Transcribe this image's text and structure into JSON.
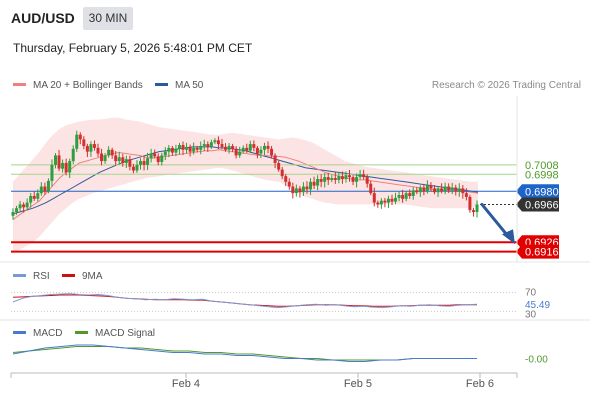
{
  "header": {
    "symbol": "AUD/USD",
    "timeframe": "30 MIN",
    "datetime": "Thursday, February 5, 2026 5:48:01 PM CET"
  },
  "legends": {
    "ma20_bb": "MA 20 + Bollinger Bands",
    "ma50": "MA 50",
    "rsi": "RSI",
    "rsi_ma": "9MA",
    "macd": "MACD",
    "macd_signal": "MACD Signal"
  },
  "credit": "Research © 2026 Trading Central",
  "colors": {
    "ma20": "#f08080",
    "bollinger_fill": "#fde4e4",
    "ma50": "#2c5a9c",
    "up_candle": "#2e9e3e",
    "down_candle": "#d32f2f",
    "resistance": "#a5d48a",
    "support": "#e00000",
    "current": "#1e64c8",
    "arrow": "#2c5a9c",
    "rsi": "#7a9ad6",
    "rsi_ma": "#d01010",
    "macd": "#4a7ad0",
    "macd_signal": "#4f9a2a"
  },
  "chart_data": [
    {
      "type": "candlestick",
      "x_labels": [
        "Feb 4",
        "Feb 5",
        "Feb 6"
      ],
      "ylim": [
        0.6905,
        0.7081
      ],
      "price_levels": [
        {
          "value": "0.7008",
          "role": "resistance"
        },
        {
          "value": "0.6998",
          "role": "resistance"
        },
        {
          "value": "0.6980",
          "role": "current"
        },
        {
          "value": "0.6966",
          "role": "last"
        },
        {
          "value": "0.6926",
          "role": "support"
        },
        {
          "value": "0.6916",
          "role": "support"
        }
      ],
      "projection": {
        "from": 0.6966,
        "to": 0.6926
      },
      "close": [
        0.6958,
        0.6962,
        0.6966,
        0.6963,
        0.6968,
        0.6975,
        0.6972,
        0.6978,
        0.6985,
        0.698,
        0.6991,
        0.7008,
        0.7018,
        0.7004,
        0.701,
        0.7,
        0.7012,
        0.7025,
        0.704,
        0.7035,
        0.7028,
        0.7022,
        0.703,
        0.7026,
        0.702,
        0.7012,
        0.7018,
        0.7024,
        0.7018,
        0.7012,
        0.7016,
        0.701,
        0.7014,
        0.7006,
        0.7002,
        0.7008,
        0.7012,
        0.7008,
        0.7015,
        0.702,
        0.7017,
        0.7011,
        0.7018,
        0.7022,
        0.7026,
        0.7021,
        0.7025,
        0.7029,
        0.7024,
        0.7027,
        0.7022,
        0.7026,
        0.7024,
        0.7028,
        0.703,
        0.7027,
        0.7032,
        0.7034,
        0.703,
        0.7027,
        0.7024,
        0.7028,
        0.7025,
        0.7018,
        0.7022,
        0.7026,
        0.7023,
        0.703,
        0.7026,
        0.702,
        0.7024,
        0.7028,
        0.7025,
        0.7018,
        0.701,
        0.7003,
        0.6996,
        0.699,
        0.6985,
        0.6978,
        0.6983,
        0.6979,
        0.6985,
        0.6982,
        0.699,
        0.6986,
        0.6993,
        0.699,
        0.6995,
        0.6992,
        0.6994,
        0.6992,
        0.6996,
        0.6993,
        0.6997,
        0.6995,
        0.699,
        0.6995,
        0.6998,
        0.6995,
        0.6988,
        0.6978,
        0.6968,
        0.6966,
        0.697,
        0.6968,
        0.6972,
        0.6969,
        0.6973,
        0.6976,
        0.6972,
        0.6978,
        0.6975,
        0.6981,
        0.6979,
        0.6984,
        0.698,
        0.6986,
        0.6983,
        0.6979,
        0.6983,
        0.698,
        0.6985,
        0.6981,
        0.6984,
        0.698,
        0.6983,
        0.6978,
        0.6974,
        0.696,
        0.6958,
        0.6966
      ],
      "ma20": [
        0.695,
        0.6955,
        0.696,
        0.6965,
        0.697,
        0.6978,
        0.6986,
        0.6994,
        0.7,
        0.7005,
        0.701,
        0.7012,
        0.7014,
        0.7016,
        0.7018,
        0.702,
        0.7021,
        0.702,
        0.7019,
        0.7018,
        0.7016,
        0.7015,
        0.7016,
        0.7017,
        0.7018,
        0.7019,
        0.702,
        0.7021,
        0.7022,
        0.7023,
        0.7023,
        0.7024,
        0.7023,
        0.7022,
        0.7021,
        0.702,
        0.7019,
        0.7018,
        0.7018,
        0.7017,
        0.7017,
        0.7016,
        0.7014,
        0.7012,
        0.7009,
        0.7006,
        0.7003,
        0.7,
        0.6998,
        0.6996,
        0.6994,
        0.6993,
        0.6992,
        0.6992,
        0.6991,
        0.699,
        0.6989,
        0.6988,
        0.6987,
        0.6986,
        0.6985,
        0.6984,
        0.6983,
        0.6982,
        0.6982,
        0.6981,
        0.6981,
        0.698,
        0.698,
        0.6979,
        0.6978
      ],
      "bollinger_upper": [
        0.699,
        0.6998,
        0.7006,
        0.7014,
        0.7022,
        0.7032,
        0.704,
        0.7046,
        0.705,
        0.7052,
        0.7054,
        0.7055,
        0.7056,
        0.7056,
        0.7057,
        0.7058,
        0.7058,
        0.7056,
        0.7055,
        0.7054,
        0.7052,
        0.705,
        0.7048,
        0.7047,
        0.7046,
        0.7045,
        0.7044,
        0.7043,
        0.7042,
        0.7041,
        0.704,
        0.704,
        0.7041,
        0.7042,
        0.7041,
        0.704,
        0.7039,
        0.7038,
        0.7037,
        0.7036,
        0.7035,
        0.7036,
        0.7037,
        0.7036,
        0.7034,
        0.7032,
        0.7028,
        0.7024,
        0.702,
        0.7016,
        0.7012,
        0.701,
        0.7008,
        0.7006,
        0.7005,
        0.7004,
        0.7003,
        0.7002,
        0.7001,
        0.7,
        0.6999,
        0.6998,
        0.6997,
        0.6996,
        0.6995,
        0.6994,
        0.6993,
        0.6992,
        0.6991,
        0.699,
        0.699
      ],
      "bollinger_lower": [
        0.6915,
        0.6918,
        0.6922,
        0.6926,
        0.6932,
        0.694,
        0.6948,
        0.6956,
        0.6962,
        0.6968,
        0.6972,
        0.6975,
        0.6978,
        0.698,
        0.6982,
        0.6984,
        0.6986,
        0.6988,
        0.699,
        0.6992,
        0.6994,
        0.6995,
        0.6996,
        0.6997,
        0.6998,
        0.6999,
        0.7,
        0.7001,
        0.7002,
        0.7003,
        0.7004,
        0.7005,
        0.7004,
        0.7002,
        0.7,
        0.6998,
        0.6996,
        0.6994,
        0.6992,
        0.6991,
        0.699,
        0.6986,
        0.6982,
        0.6978,
        0.6974,
        0.6972,
        0.697,
        0.6968,
        0.6967,
        0.6966,
        0.6966,
        0.6966,
        0.6966,
        0.6966,
        0.6966,
        0.6966,
        0.6966,
        0.6966,
        0.6966,
        0.6966,
        0.6965,
        0.6964,
        0.6963,
        0.6962,
        0.6962,
        0.6962,
        0.6962,
        0.6962,
        0.6962,
        0.6963,
        0.6964
      ],
      "ma50": [
        0.6956,
        0.6958,
        0.696,
        0.6962,
        0.6965,
        0.6968,
        0.6972,
        0.6976,
        0.698,
        0.6984,
        0.6988,
        0.6992,
        0.6996,
        0.7,
        0.7003,
        0.7006,
        0.7009,
        0.7012,
        0.7014,
        0.7016,
        0.7018,
        0.702,
        0.7022,
        0.7023,
        0.7024,
        0.7025,
        0.7026,
        0.7027,
        0.7027,
        0.7027,
        0.7027,
        0.7026,
        0.7026,
        0.7025,
        0.7024,
        0.7023,
        0.7021,
        0.7019,
        0.7017,
        0.7015,
        0.7013,
        0.7011,
        0.7009,
        0.7007,
        0.7005,
        0.7004,
        0.7003,
        0.7002,
        0.7001,
        0.7,
        0.6999,
        0.6998,
        0.6997,
        0.6996,
        0.6995,
        0.6994,
        0.6993,
        0.6992,
        0.6991,
        0.699,
        0.6989,
        0.6988,
        0.6987,
        0.6986,
        0.6985,
        0.6984,
        0.6983,
        0.6982,
        0.6981,
        0.698,
        0.6979
      ]
    },
    {
      "type": "line",
      "name": "RSI",
      "tick_labels": [
        "70",
        "45.49",
        "30"
      ],
      "ylim": [
        20,
        80
      ],
      "rsi": [
        50,
        58,
        62,
        64,
        66,
        67,
        68,
        66,
        65,
        66,
        64,
        60,
        58,
        57,
        55,
        56,
        55,
        57,
        56,
        55,
        56,
        52,
        50,
        48,
        46,
        44,
        42,
        40,
        38,
        40,
        42,
        44,
        45,
        43,
        44,
        42,
        40,
        41,
        39,
        38,
        40,
        42,
        41,
        43,
        44,
        42,
        41,
        43,
        44,
        45
      ],
      "rsi_ma": [
        60,
        61,
        62,
        63,
        64,
        65,
        65,
        65,
        64,
        63,
        62,
        60,
        58,
        57,
        56,
        55,
        55,
        55,
        55,
        54,
        54,
        52,
        50,
        48,
        46,
        44,
        43,
        42,
        41,
        41,
        42,
        43,
        44,
        44,
        44,
        43,
        42,
        42,
        41,
        41,
        41,
        42,
        42,
        43,
        43,
        43,
        43,
        44,
        44,
        44
      ]
    },
    {
      "type": "line",
      "name": "MACD",
      "tick_labels": [
        "-0.00"
      ],
      "ylim": [
        -10,
        10
      ],
      "macd": [
        2,
        4,
        6,
        7,
        8,
        8,
        7,
        6,
        5,
        4,
        3,
        3,
        2,
        2,
        1,
        1,
        0,
        -1,
        -1,
        -2,
        -2,
        -3,
        -3,
        -2,
        -2,
        -1,
        -1,
        -1,
        -1,
        -1
      ],
      "macd_signal": [
        3,
        4,
        5,
        6,
        7,
        7,
        7,
        6,
        6,
        5,
        4,
        4,
        3,
        3,
        2,
        2,
        1,
        0,
        -1,
        -1,
        -2,
        -2,
        -2,
        -2,
        -2,
        -1,
        -1,
        -1,
        -1,
        -1
      ]
    }
  ]
}
